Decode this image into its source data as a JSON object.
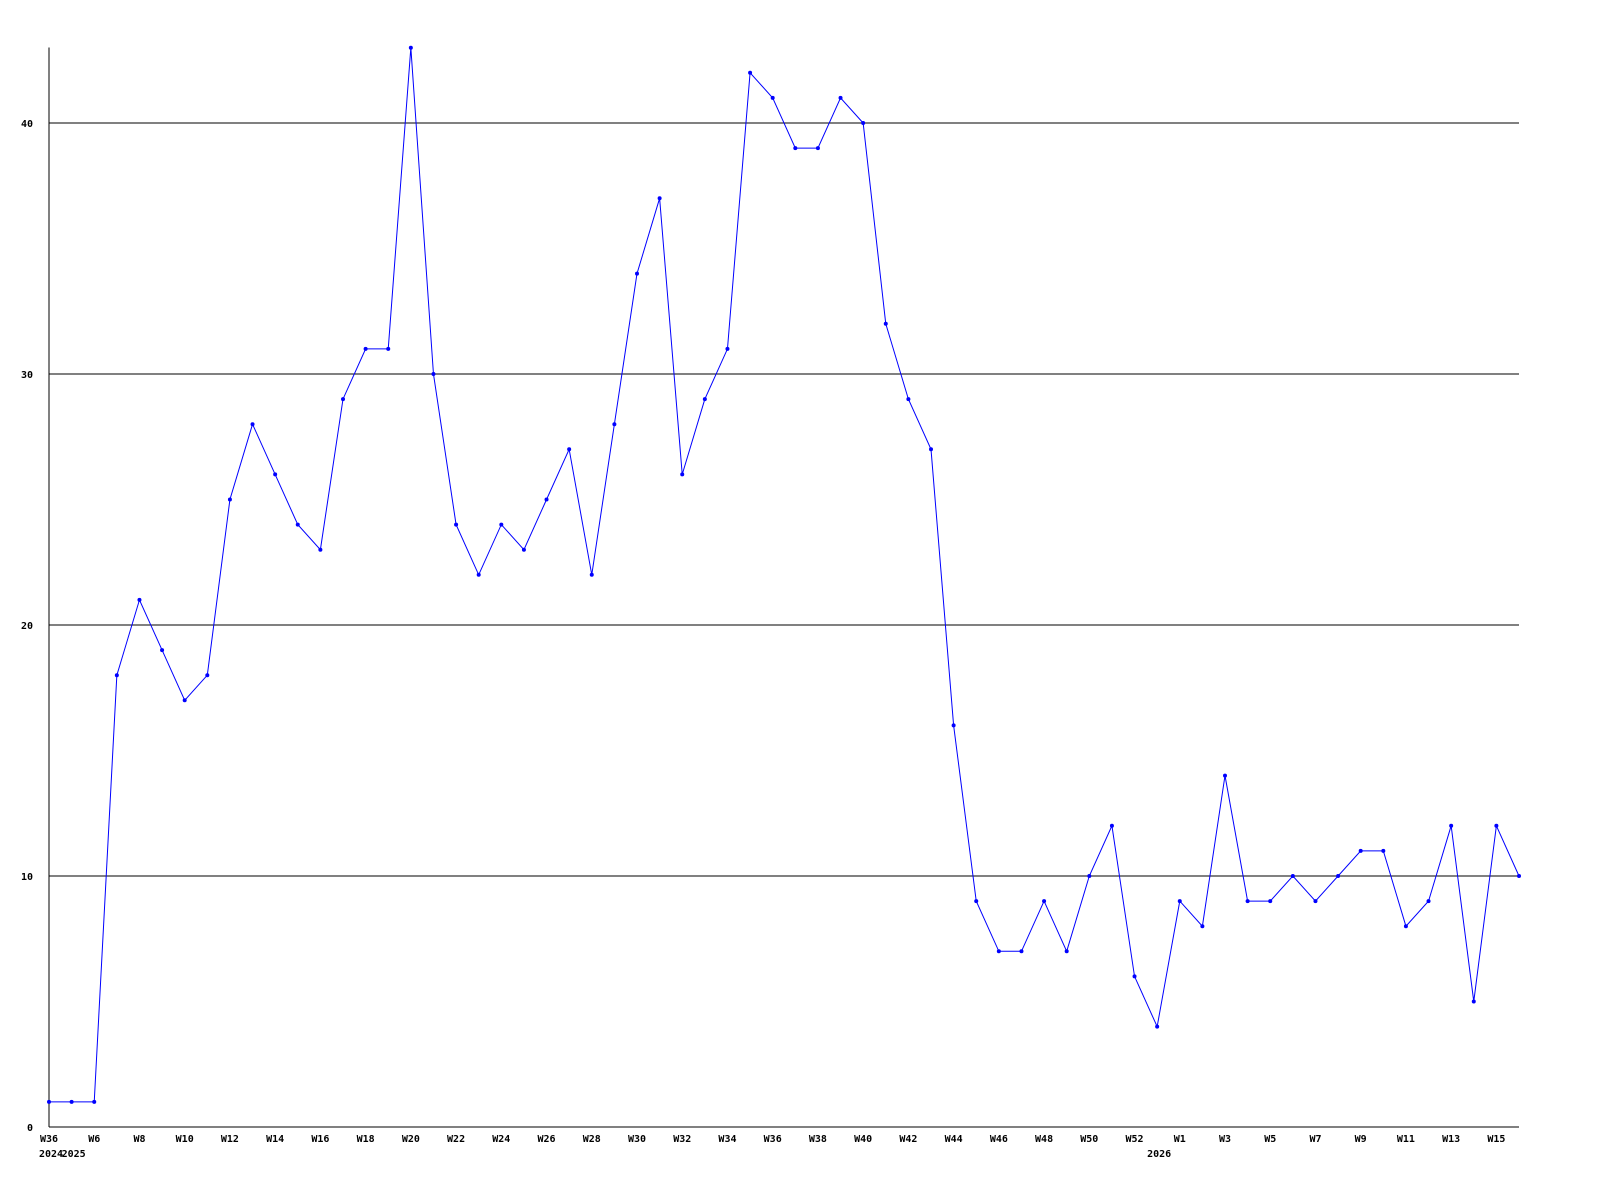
{
  "chart_data": {
    "type": "line",
    "title": "",
    "xlabel": "",
    "ylabel": "",
    "ylim": [
      0,
      43
    ],
    "yticks": [
      0,
      10,
      20,
      30,
      40
    ],
    "grid": "horizontal",
    "legend": "none",
    "colors": {
      "line": "#0000ff",
      "grid": "#000000",
      "axis": "#000000"
    },
    "x_tick_labels": [
      "W36",
      "",
      "W6",
      "",
      "W8",
      "",
      "W10",
      "",
      "W12",
      "",
      "W14",
      "",
      "W16",
      "",
      "W18",
      "",
      "W20",
      "",
      "W22",
      "",
      "W24",
      "",
      "W26",
      "",
      "W28",
      "",
      "W30",
      "",
      "W32",
      "",
      "W34",
      "",
      "W36",
      "",
      "W38",
      "",
      "W40",
      "",
      "W42",
      "",
      "W44",
      "",
      "W46",
      "",
      "W48",
      "",
      "W50",
      "",
      "W52",
      "",
      "W1",
      "",
      "W3",
      "",
      "W5",
      "",
      "W7",
      "",
      "W9",
      "",
      "W11",
      "",
      "W13",
      "",
      "W15",
      ""
    ],
    "year_labels": [
      {
        "text": "2024",
        "index": 0
      },
      {
        "text": "2025",
        "index": 1
      },
      {
        "text": "2026",
        "index": 49
      }
    ],
    "values": [
      1,
      1,
      1,
      18,
      21,
      19,
      17,
      18,
      25,
      28,
      26,
      24,
      23,
      29,
      31,
      31,
      43,
      30,
      24,
      22,
      24,
      23,
      25,
      27,
      22,
      28,
      34,
      37,
      26,
      29,
      31,
      42,
      41,
      39,
      39,
      41,
      40,
      32,
      29,
      27,
      16,
      9,
      7,
      7,
      9,
      7,
      10,
      12,
      6,
      4,
      9,
      8,
      14,
      9,
      9,
      10,
      9,
      10,
      11,
      11,
      8,
      9,
      12,
      5,
      12,
      10
    ]
  }
}
